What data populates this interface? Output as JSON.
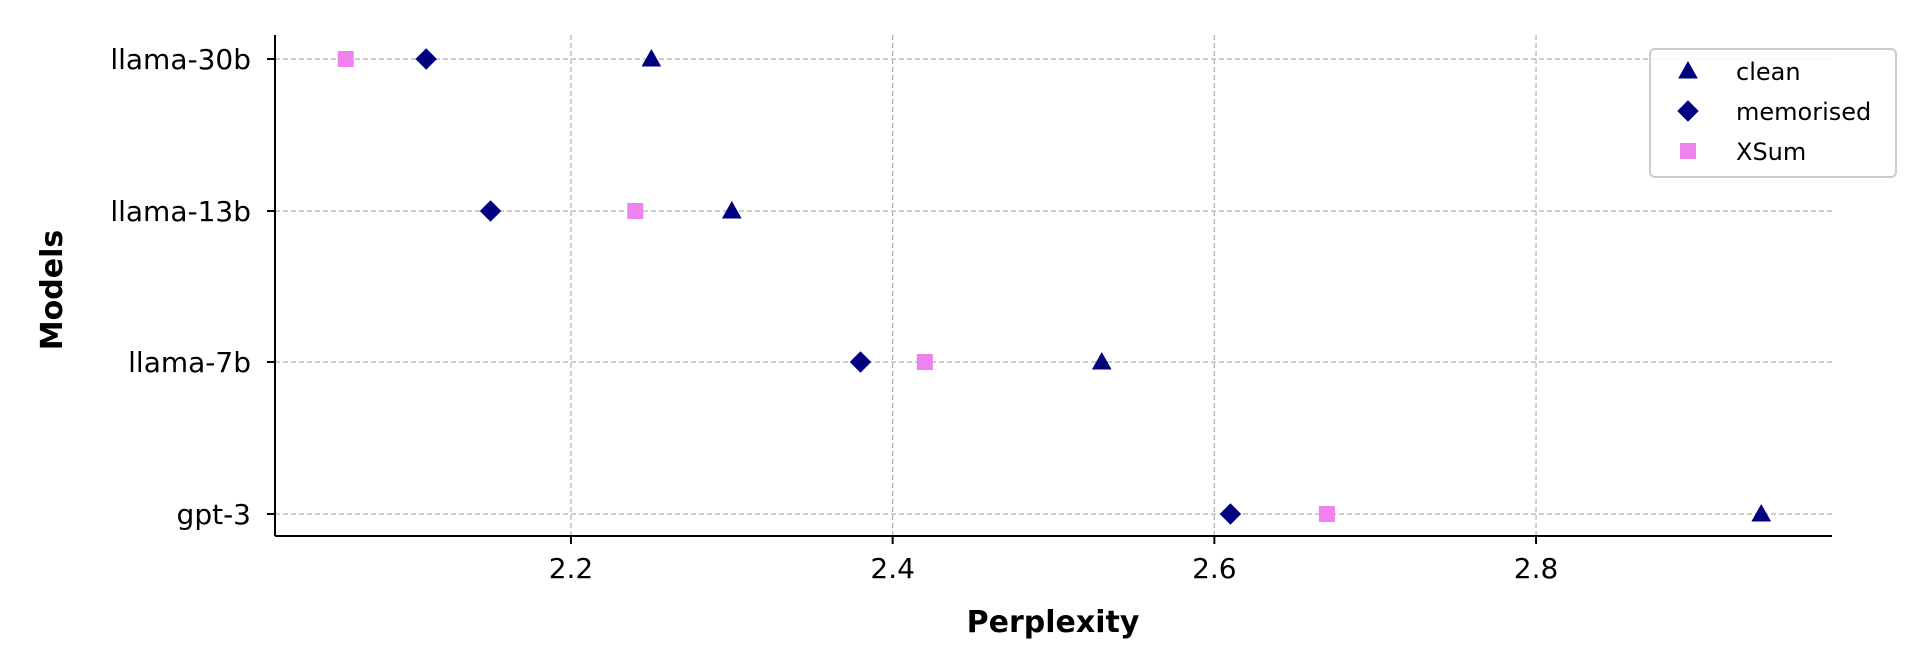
{
  "chart_data": {
    "type": "scatter",
    "orientation": "horizontal",
    "title": "",
    "xlabel": "Perplexity",
    "ylabel": "Models",
    "categories": [
      "llama-30b",
      "llama-13b",
      "llama-7b",
      "gpt-3"
    ],
    "xlim": [
      2.016,
      2.984
    ],
    "xticks": [
      2.2,
      2.4,
      2.6,
      2.8
    ],
    "xtick_labels": [
      "2.2",
      "2.4",
      "2.6",
      "2.8"
    ],
    "grid": true,
    "legend_position": "top-right",
    "series": [
      {
        "name": "clean",
        "marker": "triangle",
        "color": "#000080",
        "values": [
          2.25,
          2.3,
          2.53,
          2.94
        ]
      },
      {
        "name": "memorised",
        "marker": "diamond",
        "color": "#000080",
        "values": [
          2.11,
          2.15,
          2.38,
          2.61
        ]
      },
      {
        "name": "XSum",
        "marker": "square",
        "color": "#ee82ee",
        "values": [
          2.06,
          2.24,
          2.42,
          2.67
        ]
      }
    ]
  }
}
